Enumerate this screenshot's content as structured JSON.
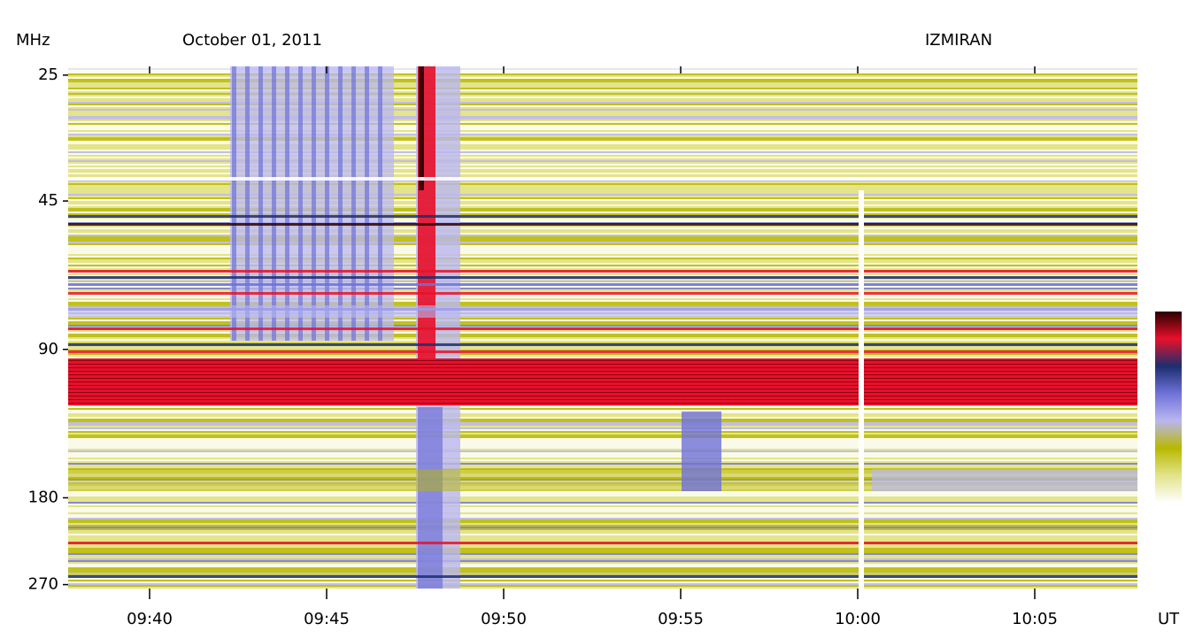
{
  "chart_data": {
    "type": "spectrogram",
    "y_unit": "MHz",
    "title": "October 01, 2011",
    "observatory": "IZMIRAN",
    "x_unit": "UT",
    "log_scale": true,
    "ylim": [
      24,
      275
    ],
    "yticks": [
      25,
      45,
      90,
      180,
      270
    ],
    "xlim": [
      577.7,
      607.9
    ],
    "xticks": [
      {
        "value": 580,
        "label": "09:40"
      },
      {
        "value": 585,
        "label": "09:45"
      },
      {
        "value": 590,
        "label": "09:50"
      },
      {
        "value": 595,
        "label": "09:55"
      },
      {
        "value": 600,
        "label": "10:00"
      },
      {
        "value": 605,
        "label": "10:05"
      }
    ],
    "colormap": [
      "#2a0000",
      "#e8102a",
      "#1c2e6e",
      "#6f72d8",
      "#b9b7f0",
      "#b8b800",
      "#e3e38a",
      "#ffffff"
    ]
  }
}
